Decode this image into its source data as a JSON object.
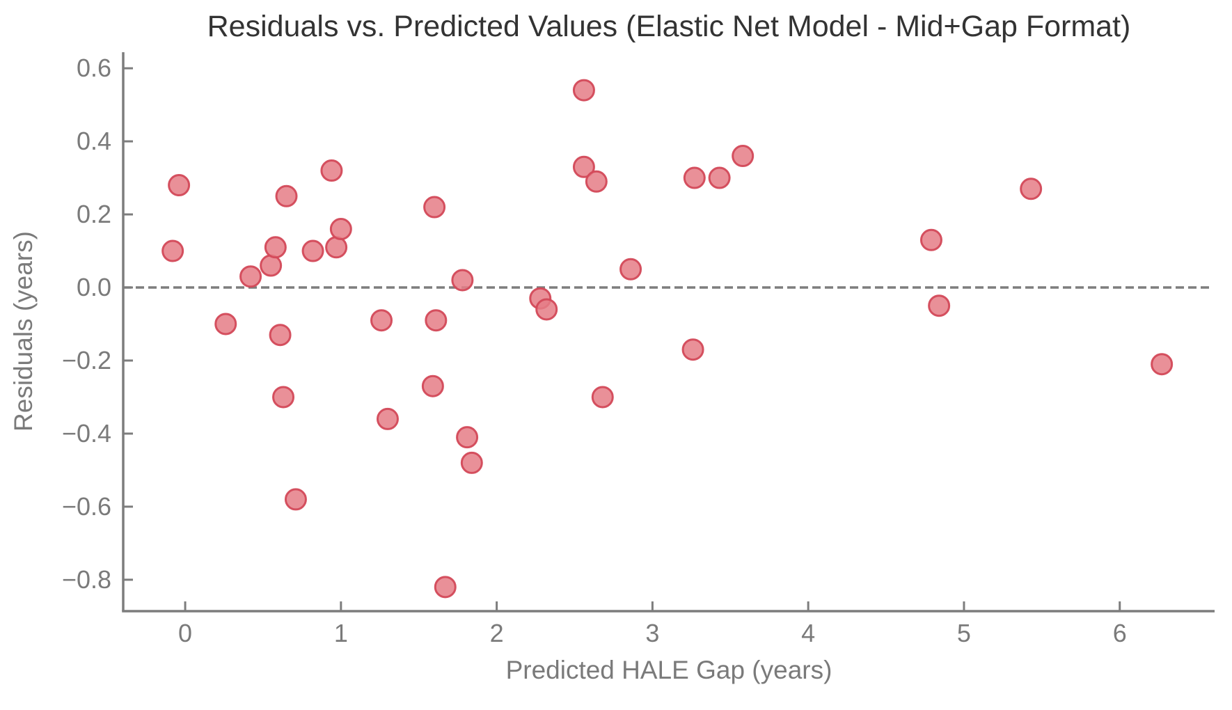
{
  "chart_data": {
    "type": "scatter",
    "title": "Residuals vs. Predicted Values (Elastic Net Model - Mid+Gap Format)",
    "xlabel": "Predicted HALE Gap (years)",
    "ylabel": "Residuals (years)",
    "xlim": [
      -0.398,
      6.609
    ],
    "ylim": [
      -0.886,
      0.644
    ],
    "x_ticks": [
      0,
      1,
      2,
      3,
      4,
      5,
      6
    ],
    "x_tick_labels": [
      "0",
      "1",
      "2",
      "3",
      "4",
      "5",
      "6"
    ],
    "y_ticks": [
      0.6,
      0.4,
      0.2,
      0.0,
      -0.2,
      -0.4,
      -0.6,
      -0.8
    ],
    "y_tick_labels": [
      "0.6",
      "0.4",
      "0.2",
      "0.0",
      "−0.2",
      "−0.4",
      "−0.6",
      "−0.8"
    ],
    "grid": false,
    "legend_position": "none",
    "zero_line": {
      "y": 0.0,
      "style": "dashed"
    },
    "series": [
      {
        "name": "residuals",
        "marker": "circle",
        "points": [
          [
            -0.04,
            0.28
          ],
          [
            -0.08,
            0.1
          ],
          [
            0.26,
            -0.1
          ],
          [
            0.42,
            0.03
          ],
          [
            0.55,
            0.06
          ],
          [
            0.58,
            0.11
          ],
          [
            0.65,
            0.25
          ],
          [
            0.61,
            -0.13
          ],
          [
            0.63,
            -0.3
          ],
          [
            0.71,
            -0.58
          ],
          [
            0.82,
            0.1
          ],
          [
            0.94,
            0.32
          ],
          [
            0.97,
            0.11
          ],
          [
            1.0,
            0.16
          ],
          [
            1.26,
            -0.09
          ],
          [
            1.3,
            -0.36
          ],
          [
            1.6,
            0.22
          ],
          [
            1.59,
            -0.27
          ],
          [
            1.61,
            -0.09
          ],
          [
            1.67,
            -0.82
          ],
          [
            1.78,
            0.02
          ],
          [
            1.81,
            -0.41
          ],
          [
            1.84,
            -0.48
          ],
          [
            2.28,
            -0.03
          ],
          [
            2.32,
            -0.06
          ],
          [
            2.56,
            0.54
          ],
          [
            2.56,
            0.33
          ],
          [
            2.64,
            0.29
          ],
          [
            2.68,
            -0.3
          ],
          [
            2.86,
            0.05
          ],
          [
            3.27,
            0.3
          ],
          [
            3.26,
            -0.17
          ],
          [
            3.43,
            0.3
          ],
          [
            3.58,
            0.36
          ],
          [
            4.79,
            0.13
          ],
          [
            4.84,
            -0.05
          ],
          [
            5.43,
            0.27
          ],
          [
            6.27,
            -0.21
          ]
        ]
      }
    ],
    "colors": {
      "marker_fill": "#e57c86",
      "marker_edge": "#d34959",
      "axis": "#7d7d7d",
      "zero_line": "#7d7d7d",
      "title_text": "#333333",
      "label_text": "#7a7a7a"
    }
  }
}
